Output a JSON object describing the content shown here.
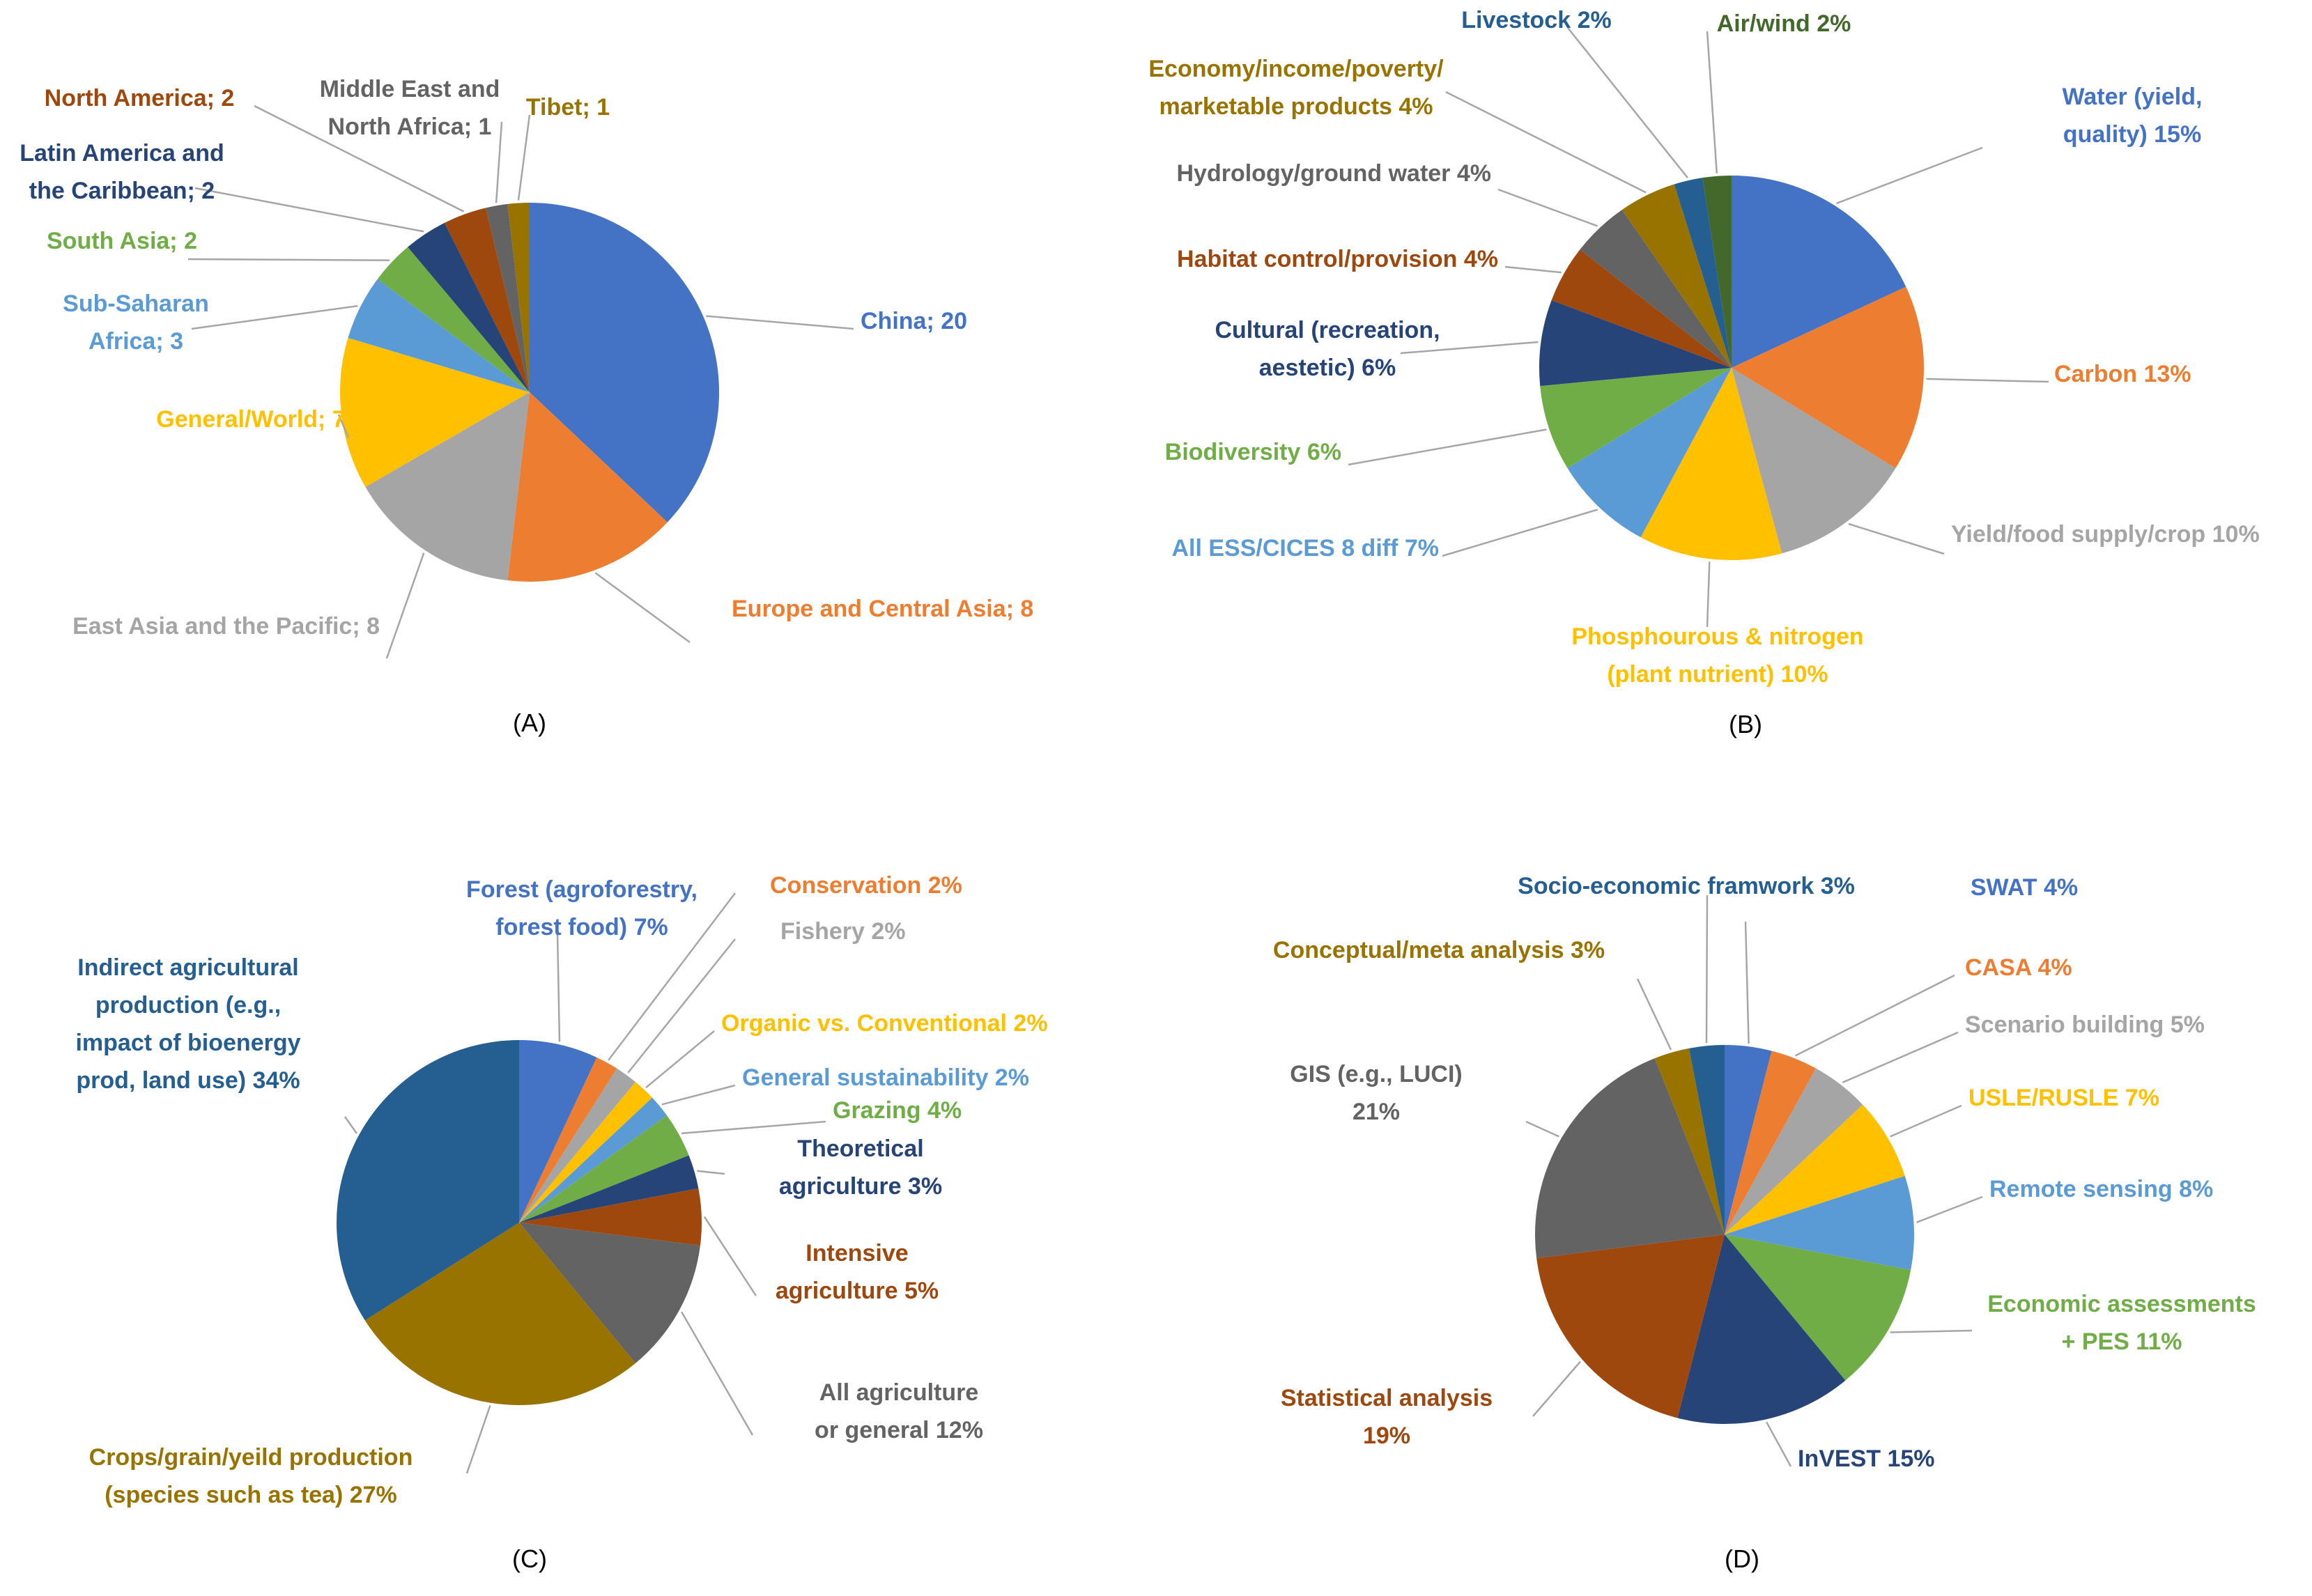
{
  "chart_data": [
    {
      "type": "pie",
      "caption": "(A)",
      "value_format": "count",
      "slices": [
        {
          "label": [
            "China; 20"
          ],
          "value": 20,
          "color": "#4472C4"
        },
        {
          "label": [
            "Europe and Central Asia; 8"
          ],
          "value": 8,
          "color": "#ED7D31"
        },
        {
          "label": [
            "East Asia and the Pacific; 8"
          ],
          "value": 8,
          "color": "#A5A5A5"
        },
        {
          "label": [
            "General/World; 7"
          ],
          "value": 7,
          "color": "#FFC000"
        },
        {
          "label": [
            "Sub-Saharan",
            "Africa; 3"
          ],
          "value": 3,
          "color": "#5B9BD5"
        },
        {
          "label": [
            "South Asia; 2"
          ],
          "value": 2,
          "color": "#70AD47"
        },
        {
          "label": [
            "Latin America and",
            "the Caribbean; 2"
          ],
          "value": 2,
          "color": "#264478"
        },
        {
          "label": [
            "North America; 2"
          ],
          "value": 2,
          "color": "#9E480E"
        },
        {
          "label": [
            "Middle East and",
            "North Africa; 1"
          ],
          "value": 1,
          "color": "#636363"
        },
        {
          "label": [
            "Tibet; 1"
          ],
          "value": 1,
          "color": "#997300"
        }
      ]
    },
    {
      "type": "pie",
      "caption": "(B)",
      "value_format": "percent",
      "slices": [
        {
          "label": [
            "Water (yield,",
            "quality) 15%"
          ],
          "value": 15,
          "color": "#4472C4"
        },
        {
          "label": [
            "Carbon 13%"
          ],
          "value": 13,
          "color": "#ED7D31"
        },
        {
          "label": [
            "Yield/food supply/crop 10%"
          ],
          "value": 10,
          "color": "#A5A5A5"
        },
        {
          "label": [
            "Phosphourous & nitrogen",
            "(plant nutrient) 10%"
          ],
          "value": 10,
          "color": "#FFC000"
        },
        {
          "label": [
            "All ESS/CICES 8 diff 7%"
          ],
          "value": 7,
          "color": "#5B9BD5"
        },
        {
          "label": [
            "Biodiversity 6%"
          ],
          "value": 6,
          "color": "#70AD47"
        },
        {
          "label": [
            "Cultural (recreation,",
            "aestetic) 6%"
          ],
          "value": 6,
          "color": "#264478"
        },
        {
          "label": [
            "Habitat control/provision 4%"
          ],
          "value": 4,
          "color": "#9E480E"
        },
        {
          "label": [
            "Hydrology/ground water 4%"
          ],
          "value": 4,
          "color": "#636363"
        },
        {
          "label": [
            "Economy/income/poverty/",
            "marketable products 4%"
          ],
          "value": 4,
          "color": "#997300"
        },
        {
          "label": [
            "Livestock 2%"
          ],
          "value": 2,
          "color": "#255E91"
        },
        {
          "label": [
            "Air/wind 2%"
          ],
          "value": 2,
          "color": "#43682B"
        }
      ]
    },
    {
      "type": "pie",
      "caption": "(C)",
      "value_format": "percent",
      "slices": [
        {
          "label": [
            "Forest (agroforestry,",
            "forest food) 7%"
          ],
          "value": 7,
          "color": "#4472C4"
        },
        {
          "label": [
            "Conservation 2%"
          ],
          "value": 2,
          "color": "#ED7D31"
        },
        {
          "label": [
            "Fishery 2%"
          ],
          "value": 2,
          "color": "#A5A5A5"
        },
        {
          "label": [
            "Organic vs. Conventional 2%"
          ],
          "value": 2,
          "color": "#FFC000"
        },
        {
          "label": [
            "General sustainability 2%"
          ],
          "value": 2,
          "color": "#5B9BD5"
        },
        {
          "label": [
            "Grazing 4%"
          ],
          "value": 4,
          "color": "#70AD47"
        },
        {
          "label": [
            "Theoretical",
            "agriculture 3%"
          ],
          "value": 3,
          "color": "#264478"
        },
        {
          "label": [
            "Intensive",
            "agriculture 5%"
          ],
          "value": 5,
          "color": "#9E480E"
        },
        {
          "label": [
            "All agriculture",
            "or general 12%"
          ],
          "value": 12,
          "color": "#636363"
        },
        {
          "label": [
            "Crops/grain/yeild production",
            "(species such as tea) 27%"
          ],
          "value": 27,
          "color": "#997300"
        },
        {
          "label": [
            "Indirect agricultural",
            "production (e.g.,",
            "impact of bioenergy",
            "prod, land use) 34%"
          ],
          "value": 34,
          "color": "#255E91"
        }
      ]
    },
    {
      "type": "pie",
      "caption": "(D)",
      "value_format": "percent",
      "slices": [
        {
          "label": [
            "SWAT 4%"
          ],
          "value": 4,
          "color": "#4472C4"
        },
        {
          "label": [
            "CASA 4%"
          ],
          "value": 4,
          "color": "#ED7D31"
        },
        {
          "label": [
            "Scenario building 5%"
          ],
          "value": 5,
          "color": "#A5A5A5"
        },
        {
          "label": [
            "USLE/RUSLE 7%"
          ],
          "value": 7,
          "color": "#FFC000"
        },
        {
          "label": [
            "Remote sensing 8%"
          ],
          "value": 8,
          "color": "#5B9BD5"
        },
        {
          "label": [
            "Economic assessments",
            "+ PES 11%"
          ],
          "value": 11,
          "color": "#70AD47"
        },
        {
          "label": [
            "InVEST 15%"
          ],
          "value": 15,
          "color": "#264478"
        },
        {
          "label": [
            "Statistical analysis",
            "19%"
          ],
          "value": 19,
          "color": "#9E480E"
        },
        {
          "label": [
            "GIS (e.g., LUCI)",
            "21%"
          ],
          "value": 21,
          "color": "#636363"
        },
        {
          "label": [
            "Conceptual/meta analysis 3%"
          ],
          "value": 3,
          "color": "#997300"
        },
        {
          "label": [
            "Socio-economic framwork 3%"
          ],
          "value": 3,
          "color": "#255E91"
        }
      ]
    }
  ]
}
